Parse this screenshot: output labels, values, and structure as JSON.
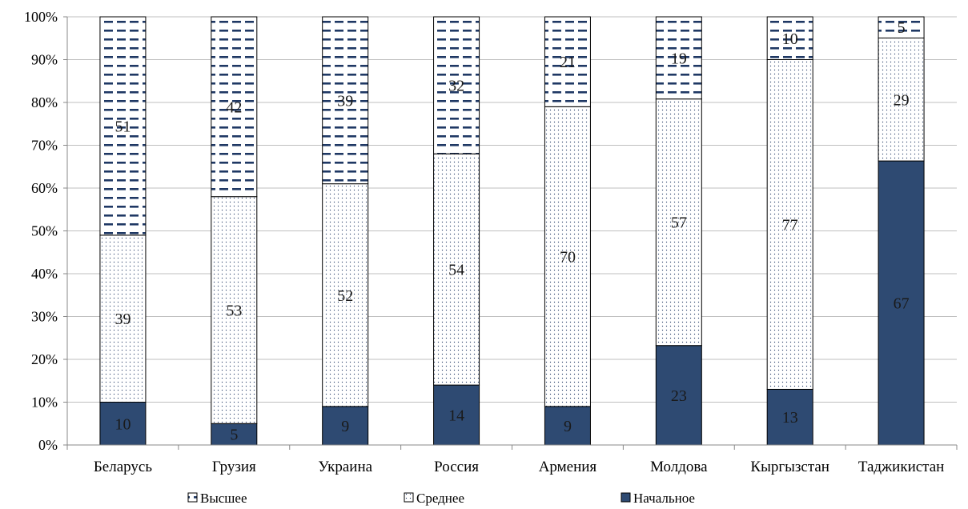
{
  "chart_data": {
    "type": "bar",
    "stacked": true,
    "normalized_percent": true,
    "categories": [
      "Беларусь",
      "Грузия",
      "Украина",
      "Россия",
      "Армения",
      "Молдова",
      "Кыргызстан",
      "Таджикистан"
    ],
    "series": [
      {
        "name": "Начальное",
        "values": [
          10,
          5,
          9,
          14,
          9,
          23,
          13,
          67
        ],
        "color": "#2e4a72",
        "pattern": "solid"
      },
      {
        "name": "Среднее",
        "values": [
          39,
          53,
          52,
          54,
          70,
          57,
          77,
          29
        ],
        "color": "#ffffff",
        "pattern": "dots"
      },
      {
        "name": "Высшее",
        "values": [
          51,
          42,
          39,
          32,
          21,
          19,
          10,
          5
        ],
        "color": "#ffffff",
        "pattern": "dashes"
      }
    ],
    "legend_order": [
      "Высшее",
      "Среднее",
      "Начальное"
    ],
    "y_ticks": [
      "0%",
      "10%",
      "20%",
      "30%",
      "40%",
      "50%",
      "60%",
      "70%",
      "80%",
      "90%",
      "100%"
    ],
    "ylim": [
      0,
      100
    ],
    "grid": true,
    "legend_position": "bottom",
    "title": "",
    "xlabel": "",
    "ylabel": "",
    "colors": {
      "dark": "#2e4a72",
      "gridline": "#bfbfbf",
      "axis": "#888888",
      "text": "#000000"
    }
  }
}
